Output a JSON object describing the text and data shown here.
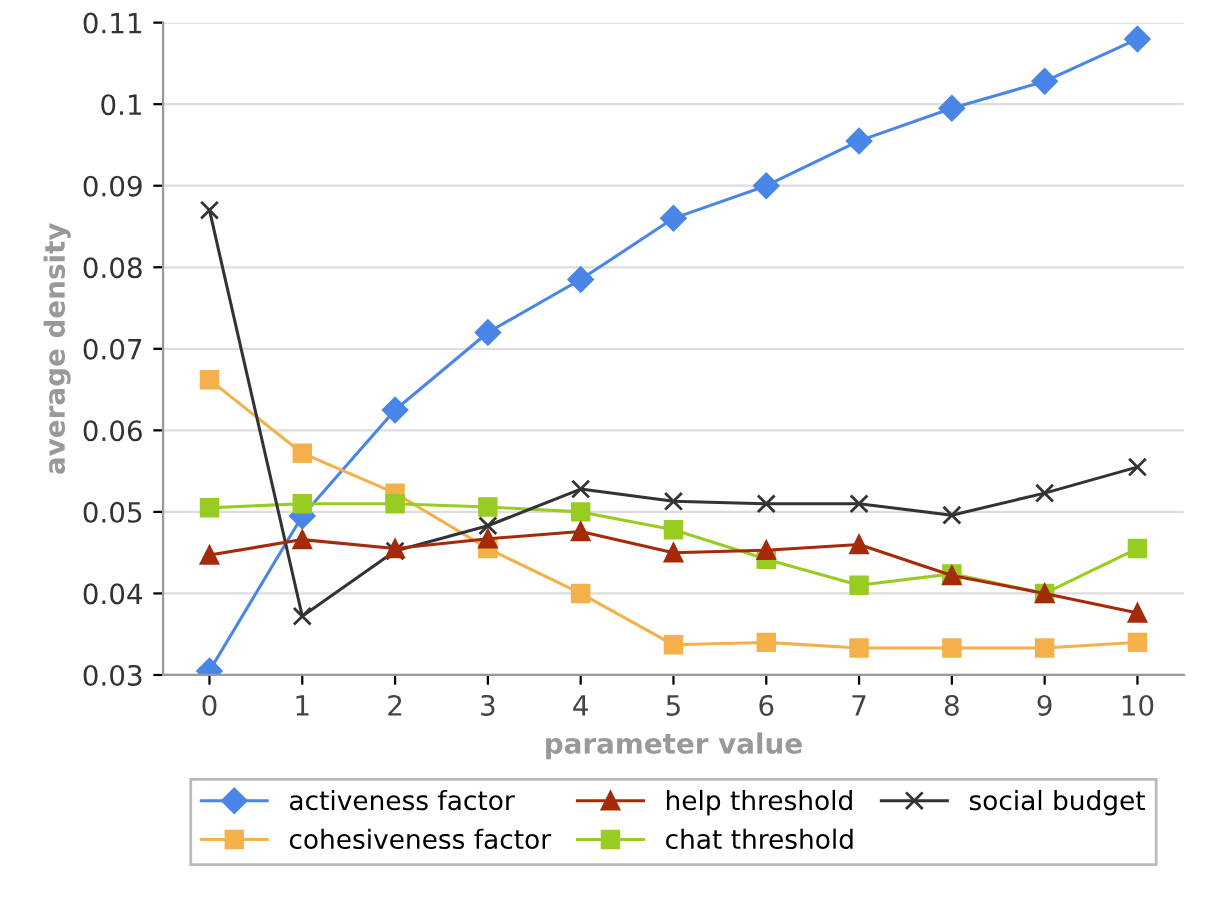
{
  "chart_data": {
    "type": "line",
    "xlabel": "parameter value",
    "ylabel": "average density",
    "categories": [
      "0",
      "1",
      "2",
      "3",
      "4",
      "5",
      "6",
      "7",
      "8",
      "9",
      "10"
    ],
    "ylim": [
      0.03,
      0.11
    ],
    "yticks": [
      0.03,
      0.04,
      0.05,
      0.06,
      0.07,
      0.08,
      0.09,
      0.1,
      0.11
    ],
    "grid": "y",
    "legend": "bottom",
    "series": [
      {
        "name": "activeness factor",
        "color": "#4a86e8",
        "marker": "diamond",
        "values": [
          0.0305,
          0.0495,
          0.0625,
          0.072,
          0.0785,
          0.086,
          0.09,
          0.0955,
          0.0995,
          0.1028,
          0.108
        ]
      },
      {
        "name": "cohesiveness factor",
        "color": "#f4b04a",
        "marker": "square",
        "values": [
          0.0662,
          0.0572,
          0.0523,
          0.0455,
          0.04,
          0.0337,
          0.034,
          0.0333,
          0.0333,
          0.0333,
          0.034
        ]
      },
      {
        "name": "help threshold",
        "color": "#a52a0a",
        "marker": "triangle",
        "values": [
          0.0447,
          0.0466,
          0.0455,
          0.0467,
          0.0476,
          0.045,
          0.0453,
          0.046,
          0.0422,
          0.04,
          0.0376
        ]
      },
      {
        "name": "chat threshold",
        "color": "#99cc22",
        "marker": "square",
        "values": [
          0.0505,
          0.051,
          0.051,
          0.0506,
          0.05,
          0.0478,
          0.0442,
          0.041,
          0.0424,
          0.04,
          0.0455
        ]
      },
      {
        "name": "social budget",
        "color": "#333333",
        "marker": "cross",
        "values": [
          0.087,
          0.0372,
          0.0452,
          0.0483,
          0.0528,
          0.0513,
          0.051,
          0.051,
          0.0496,
          0.0523,
          0.0555
        ]
      }
    ]
  }
}
